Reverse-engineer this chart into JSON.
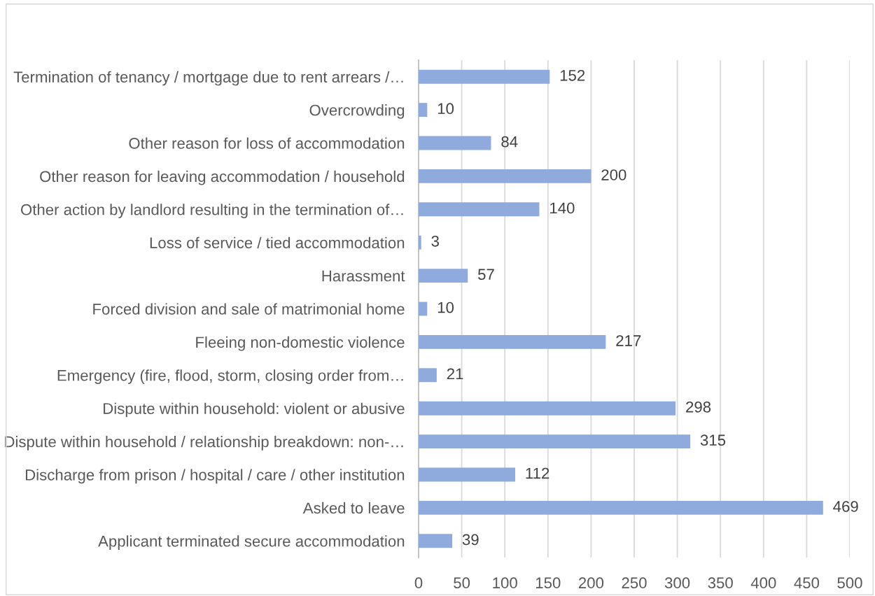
{
  "chart_data": {
    "type": "bar",
    "orientation": "horizontal",
    "categories": [
      "Termination of tenancy / mortgage due to rent arrears /…",
      "Overcrowding",
      "Other reason for loss of accommodation",
      "Other reason for leaving accommodation / household",
      "Other action by landlord resulting in the termination of…",
      "Loss of service / tied accommodation",
      "Harassment",
      "Forced division and sale of matrimonial home",
      "Fleeing non-domestic violence",
      "Emergency (fire, flood, storm, closing order from…",
      "Dispute within household: violent or abusive",
      "Dispute within household / relationship breakdown: non-…",
      "Discharge from prison / hospital / care / other institution",
      "Asked to leave",
      "Applicant terminated secure accommodation"
    ],
    "values": [
      152,
      10,
      84,
      200,
      140,
      3,
      57,
      10,
      217,
      21,
      298,
      315,
      112,
      469,
      39
    ],
    "color": "#8faadc",
    "xlim": [
      0,
      500
    ],
    "xticks": [
      0,
      50,
      100,
      150,
      200,
      250,
      300,
      350,
      400,
      450,
      500
    ],
    "grid": "x",
    "data_labels": true
  }
}
